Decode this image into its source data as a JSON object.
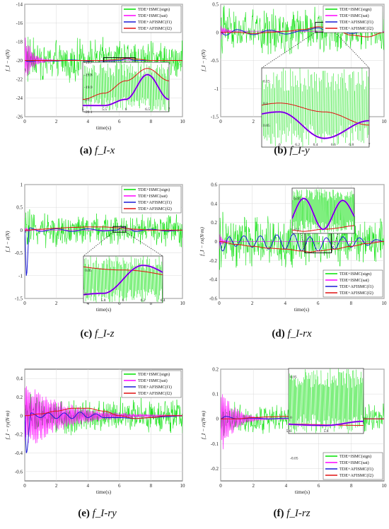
{
  "colors": {
    "sign": "#00e000",
    "sat": "#ff00ff",
    "f1": "#1a1ad6",
    "f2": "#e01010",
    "axis": "#262626",
    "grid": "#d9d9d9"
  },
  "series_names": [
    "TDE+ISMC(sign)",
    "TDE+ISMC(sat)",
    "TDE+AFISMC(f1)",
    "TDE+AFISMC(f2)"
  ],
  "xlabel": "time(s)",
  "chart_data": [
    {
      "type": "line",
      "caption_label": "(a)",
      "caption_sym": "f_I-x",
      "ylabel": "f_I − x(N)",
      "xlim": [
        0,
        10
      ],
      "ylim": [
        -26,
        -14
      ],
      "xticks": [
        0,
        2,
        4,
        6,
        8,
        10
      ],
      "xticklabels": [
        "0",
        "2",
        "4",
        "6",
        "8",
        "10"
      ],
      "yticks": [
        -26,
        -24,
        -22,
        -20,
        -18,
        -16,
        -14
      ],
      "yticklabels": [
        "-26",
        "-24",
        "-22",
        "-20",
        "-18",
        "-16",
        "-14"
      ],
      "legend": "top-right",
      "baseline": -20,
      "sign_amplitude": 2.5,
      "sat_decay_start": 3.0,
      "sat_decay_time": 0.5,
      "f1_curve": {
        "x": [
          0,
          0.2,
          1,
          2,
          3,
          4,
          4.5,
          5,
          5.5,
          6,
          6.5,
          7,
          8,
          9,
          10
        ],
        "y": [
          -20,
          -20.1,
          -20,
          -20.05,
          -19.95,
          -20.05,
          -20.0,
          -20.05,
          -20.05,
          -20.0,
          -19.8,
          -20.0,
          -20.0,
          -20.0,
          -20.0
        ]
      },
      "f2_curve": {
        "x": [
          0,
          1,
          2,
          3,
          4,
          5,
          5.5,
          6,
          6.5,
          7,
          8,
          9,
          10
        ],
        "y": [
          -20,
          -20,
          -20,
          -20,
          -20,
          -20,
          -19.95,
          -19.85,
          -19.75,
          -19.85,
          -20,
          -20,
          -20
        ]
      },
      "zoom_x": [
        5,
        7
      ],
      "zoom_y": [
        -20.1,
        -19.7
      ],
      "inset_xticks": [
        5,
        5.5,
        6,
        6.5,
        7
      ],
      "inset_xticklabels": [
        "5",
        "5.5",
        "6",
        "6.5",
        "7"
      ],
      "inset_yticks": [
        -20.1,
        -20,
        -19.9,
        -19.8,
        -19.7
      ],
      "inset_yticklabels": [
        "-20.1",
        "-20",
        "-19.9",
        "-19.8",
        "-19.7"
      ]
    },
    {
      "type": "line",
      "caption_label": "(b)",
      "caption_sym": "f_I-y",
      "ylabel": "f_I − y(N)",
      "xlim": [
        0,
        10
      ],
      "ylim": [
        -1.5,
        0.5
      ],
      "xticks": [
        0,
        2,
        4,
        6,
        8,
        10
      ],
      "xticklabels": [
        "0",
        "2",
        "4",
        "6",
        "8",
        "10"
      ],
      "yticks": [
        -1.5,
        -1,
        -0.5,
        0,
        0.5
      ],
      "yticklabels": [
        "-1.5",
        "-1",
        "-0.5",
        "0",
        "0.5"
      ],
      "legend": "top-right",
      "baseline": 0.02,
      "sign_amplitude": 0.45,
      "sat_decay_start": 0.15,
      "sat_decay_time": 0.3,
      "f1_curve": {
        "x": [
          0,
          0.3,
          1,
          2,
          3,
          4,
          5,
          6,
          6.5,
          7,
          8,
          9,
          10
        ],
        "y": [
          0,
          -0.05,
          0.05,
          -0.04,
          0.04,
          -0.03,
          0.03,
          0.08,
          0.02,
          0.06,
          -0.02,
          0.03,
          0.0
        ]
      },
      "f2_curve": {
        "x": [
          0,
          1,
          2,
          3,
          4,
          5,
          6,
          6.5,
          7,
          8,
          9,
          10
        ],
        "y": [
          0,
          0,
          -0.02,
          0.0,
          0.02,
          0.05,
          0.1,
          0.08,
          0.05,
          -0.05,
          -0.08,
          0.0
        ]
      },
      "zoom_x": [
        5.8,
        7.0
      ],
      "zoom_y": [
        0.0,
        0.18
      ],
      "inset_xticks": [
        6,
        6.2,
        6.4,
        6.6,
        6.8,
        7
      ],
      "inset_xticklabels": [
        "6",
        "6.2",
        "6.4",
        "6.6",
        "6.8",
        "7"
      ],
      "inset_yticks": [
        0.05,
        0.1,
        0.15
      ],
      "inset_yticklabels": [
        "0.05",
        "0.1",
        "0.15"
      ]
    },
    {
      "type": "line",
      "caption_label": "(c)",
      "caption_sym": "f_I-z",
      "ylabel": "f_I − z(N)",
      "xlim": [
        0,
        10
      ],
      "ylim": [
        -1.5,
        1
      ],
      "xticks": [
        0,
        2,
        4,
        6,
        8,
        10
      ],
      "xticklabels": [
        "0",
        "2",
        "4",
        "6",
        "8",
        "10"
      ],
      "yticks": [
        -1.5,
        -1,
        -0.5,
        0,
        0.5,
        1
      ],
      "yticklabels": [
        "-1.5",
        "-1",
        "-0.5",
        "0",
        "0.5",
        "1"
      ],
      "legend": "top-right",
      "baseline": 0.0,
      "sign_amplitude": 0.4,
      "sat_decay_start": 0.1,
      "sat_decay_time": 0.2,
      "f1_curve": {
        "x": [
          0,
          0.1,
          0.3,
          1,
          2,
          3,
          4,
          5,
          5.8,
          6.2,
          6.6,
          7,
          8,
          9,
          10
        ],
        "y": [
          0,
          -1.0,
          0.05,
          -0.03,
          0.03,
          -0.03,
          0.03,
          -0.02,
          0.0,
          0.06,
          0.03,
          -0.03,
          0.02,
          -0.02,
          0.0
        ]
      },
      "f2_curve": {
        "x": [
          0,
          1,
          2,
          3,
          4,
          5,
          6,
          7,
          8,
          9,
          10
        ],
        "y": [
          0,
          0.02,
          0.04,
          0.06,
          0.07,
          0.07,
          0.05,
          0.02,
          0.0,
          0.0,
          0.0
        ]
      },
      "zoom_x": [
        5.6,
        6.4
      ],
      "zoom_y": [
        -0.02,
        0.08
      ],
      "inset_xticks": [
        5.8,
        6,
        6.2,
        6.4
      ],
      "inset_xticklabels": [
        "5.8",
        "6",
        "6.2",
        "6.4"
      ],
      "inset_yticks": [
        0,
        0.05
      ],
      "inset_yticklabels": [
        "0",
        "0.05"
      ]
    },
    {
      "type": "line",
      "caption_label": "(d)",
      "caption_sym": "f_I-rx",
      "ylabel": "f_I − rx(N·m)",
      "xlim": [
        0,
        10
      ],
      "ylim": [
        -0.6,
        0.6
      ],
      "xticks": [
        0,
        2,
        4,
        6,
        8,
        10
      ],
      "xticklabels": [
        "0",
        "2",
        "4",
        "6",
        "8",
        "10"
      ],
      "yticks": [
        -0.6,
        -0.4,
        -0.2,
        0,
        0.2,
        0.4,
        0.6
      ],
      "yticklabels": [
        "-0.6",
        "-0.4",
        "-0.2",
        "0",
        "0.2",
        "0.4",
        "0.6"
      ],
      "legend": "bottom-right",
      "baseline": 0.0,
      "sign_amplitude": 0.3,
      "sat_decay_start": 0.1,
      "sat_decay_time": 0.2,
      "f1_curve": {
        "x": [
          0,
          0.2,
          0.6,
          1,
          1.5,
          2,
          2.5,
          3,
          3.5,
          4,
          4.5,
          5,
          5.5,
          6,
          6.5,
          7,
          7.5,
          8,
          8.5,
          9,
          9.5,
          10
        ],
        "y": [
          0,
          -0.1,
          0.05,
          -0.05,
          0.06,
          -0.06,
          0.06,
          -0.08,
          0.07,
          -0.08,
          0.08,
          -0.1,
          0.05,
          -0.1,
          0.04,
          -0.08,
          0.05,
          -0.06,
          0.04,
          -0.04,
          0.02,
          0.0
        ]
      },
      "f2_curve": {
        "x": [
          0,
          1,
          2,
          3,
          4,
          5,
          5.5,
          6,
          7,
          8,
          9,
          10
        ],
        "y": [
          0,
          -0.03,
          -0.05,
          -0.07,
          -0.08,
          -0.1,
          -0.11,
          -0.1,
          -0.08,
          -0.05,
          -0.02,
          0.0
        ]
      },
      "zoom_x": [
        5.2,
        6.8
      ],
      "zoom_y": [
        -0.12,
        0.1
      ],
      "inset_xticks": [],
      "inset_xticklabels": [],
      "inset_yticks": [
        -0.1,
        0.05
      ],
      "inset_yticklabels": [
        "-0.1",
        "0.05"
      ]
    },
    {
      "type": "line",
      "caption_label": "(e)",
      "caption_sym": "f_I-ry",
      "ylabel": "f_I − ry(N·m)",
      "xlim": [
        0,
        10
      ],
      "ylim": [
        -0.7,
        0.5
      ],
      "xticks": [
        0,
        2,
        4,
        6,
        8,
        10
      ],
      "xticklabels": [
        "0",
        "2",
        "4",
        "6",
        "8",
        "10"
      ],
      "yticks": [
        -0.6,
        -0.4,
        -0.2,
        0,
        0.2,
        0.4
      ],
      "yticklabels": [
        "-0.6",
        "-0.4",
        "-0.2",
        "0",
        "0.2",
        "0.4"
      ],
      "legend": "top-right",
      "baseline": 0.0,
      "sign_amplitude": 0.22,
      "sat_decay_start": 0.4,
      "sat_decay_time": 2.5,
      "f1_curve": {
        "x": [
          0,
          0.1,
          0.4,
          1,
          1.5,
          2,
          2.5,
          3,
          3.5,
          4,
          4.5,
          5,
          6,
          7,
          8,
          9,
          10
        ],
        "y": [
          0,
          -0.4,
          0.03,
          -0.02,
          0.03,
          -0.03,
          0.03,
          -0.03,
          0.04,
          -0.02,
          0.02,
          -0.02,
          -0.02,
          -0.03,
          -0.02,
          -0.01,
          0.0
        ]
      },
      "f2_curve": {
        "x": [
          0,
          1,
          2,
          3,
          4,
          5,
          6,
          7,
          8,
          9,
          10
        ],
        "y": [
          0,
          0.02,
          0.05,
          0.08,
          0.08,
          0.05,
          0.0,
          -0.03,
          -0.02,
          0.0,
          0.0
        ]
      },
      "zoom_x": [],
      "zoom_y": [],
      "inset_xticks": [],
      "inset_xticklabels": [],
      "inset_yticks": [],
      "inset_yticklabels": []
    },
    {
      "type": "line",
      "caption_label": "(f)",
      "caption_sym": "f_I-rz",
      "ylabel": "f_I − rz(N·m)",
      "xlim": [
        0,
        10
      ],
      "ylim": [
        -0.25,
        0.2
      ],
      "xticks": [
        0,
        2,
        4,
        6,
        8,
        10
      ],
      "xticklabels": [
        "0",
        "2",
        "4",
        "6",
        "8",
        "10"
      ],
      "yticks": [
        -0.2,
        -0.1,
        0,
        0.1,
        0.2
      ],
      "yticklabels": [
        "-0.2",
        "-0.1",
        "0",
        "0.1",
        "0.2"
      ],
      "legend": "bottom-right",
      "baseline": 0.0,
      "sign_amplitude": 0.07,
      "sat_decay_start": 0.15,
      "sat_decay_time": 0.8,
      "f1_curve": {
        "x": [
          0,
          0.3,
          1,
          2,
          3,
          4,
          5,
          5.8,
          6,
          6.5,
          7,
          8,
          9,
          10
        ],
        "y": [
          0,
          0.01,
          0.0,
          0.003,
          0.0,
          0.003,
          0.0,
          -0.01,
          -0.005,
          0.01,
          0.015,
          0.005,
          0.0,
          0.0
        ]
      },
      "f2_curve": {
        "x": [
          0,
          1,
          2,
          3,
          4,
          5,
          5.5,
          6,
          6.5,
          7,
          8,
          9,
          10
        ],
        "y": [
          0,
          0.0,
          0.005,
          0.008,
          0.01,
          0.0,
          -0.008,
          -0.01,
          -0.005,
          0.0,
          0.003,
          0.0,
          0.0
        ]
      },
      "zoom_x": [
        5.6,
        6.0
      ],
      "zoom_y": [
        -0.02,
        0.06
      ],
      "inset_xticks": [
        5.6,
        5.8
      ],
      "inset_xticklabels": [
        "5.6",
        "5.8"
      ],
      "inset_yticks": [
        0.05,
        0,
        -0.05
      ],
      "inset_yticklabels": [
        "0.05",
        "0",
        "-0.05"
      ]
    }
  ]
}
